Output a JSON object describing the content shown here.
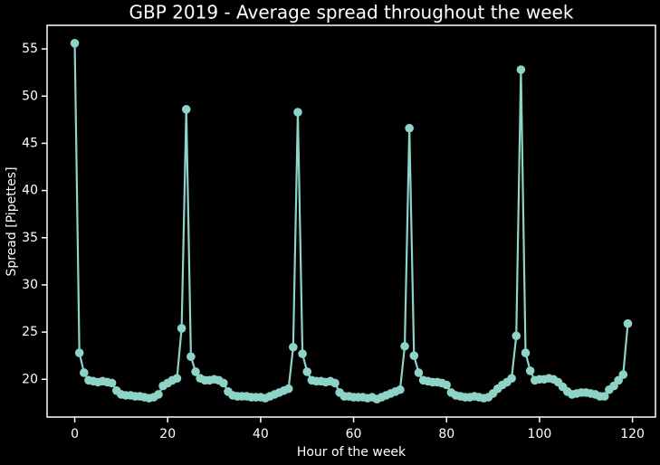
{
  "chart_data": {
    "type": "line",
    "title": "GBP 2019 - Average spread throughout the week",
    "x_label": "Hour of the week",
    "y_label": "Spread [Pipettes]",
    "x": [
      0,
      1,
      2,
      3,
      4,
      5,
      6,
      7,
      8,
      9,
      10,
      11,
      12,
      13,
      14,
      15,
      16,
      17,
      18,
      19,
      20,
      21,
      22,
      23,
      24,
      25,
      26,
      27,
      28,
      29,
      30,
      31,
      32,
      33,
      34,
      35,
      36,
      37,
      38,
      39,
      40,
      41,
      42,
      43,
      44,
      45,
      46,
      47,
      48,
      49,
      50,
      51,
      52,
      53,
      54,
      55,
      56,
      57,
      58,
      59,
      60,
      61,
      62,
      63,
      64,
      65,
      66,
      67,
      68,
      69,
      70,
      71,
      72,
      73,
      74,
      75,
      76,
      77,
      78,
      79,
      80,
      81,
      82,
      83,
      84,
      85,
      86,
      87,
      88,
      89,
      90,
      91,
      92,
      93,
      94,
      95,
      96,
      97,
      98,
      99,
      100,
      101,
      102,
      103,
      104,
      105,
      106,
      107,
      108,
      109,
      110,
      111,
      112,
      113,
      114,
      115,
      116,
      117,
      118,
      119
    ],
    "values": [
      55.6,
      22.8,
      20.7,
      19.9,
      19.8,
      19.7,
      19.8,
      19.7,
      19.6,
      18.8,
      18.4,
      18.3,
      18.3,
      18.2,
      18.2,
      18.1,
      18.0,
      18.1,
      18.4,
      19.3,
      19.6,
      19.9,
      20.1,
      25.4,
      48.6,
      22.4,
      20.8,
      20.1,
      19.9,
      19.9,
      20.0,
      19.9,
      19.6,
      18.7,
      18.3,
      18.2,
      18.2,
      18.2,
      18.1,
      18.1,
      18.1,
      18.0,
      18.2,
      18.4,
      18.6,
      18.8,
      19.0,
      23.4,
      48.3,
      22.7,
      20.8,
      19.9,
      19.8,
      19.8,
      19.7,
      19.8,
      19.6,
      18.6,
      18.2,
      18.2,
      18.1,
      18.1,
      18.1,
      18.0,
      18.1,
      17.9,
      18.1,
      18.3,
      18.5,
      18.7,
      18.9,
      23.5,
      46.6,
      22.5,
      20.7,
      19.9,
      19.8,
      19.7,
      19.7,
      19.6,
      19.4,
      18.6,
      18.3,
      18.2,
      18.1,
      18.1,
      18.2,
      18.1,
      18.0,
      18.1,
      18.5,
      19.0,
      19.4,
      19.7,
      20.1,
      24.6,
      52.8,
      22.8,
      20.9,
      19.9,
      20.0,
      20.0,
      20.1,
      20.0,
      19.7,
      19.2,
      18.7,
      18.4,
      18.5,
      18.6,
      18.6,
      18.5,
      18.4,
      18.2,
      18.2,
      18.9,
      19.3,
      19.9,
      20.5,
      25.9
    ],
    "color": "#8dd3c7",
    "xlim": [
      -5.95,
      124.95
    ],
    "xticks": [
      0,
      20,
      40,
      60,
      80,
      100,
      120
    ],
    "ylim": [
      16.0,
      57.5
    ],
    "yticks": [
      20,
      25,
      30,
      35,
      40,
      45,
      50,
      55
    ],
    "grid": false
  }
}
